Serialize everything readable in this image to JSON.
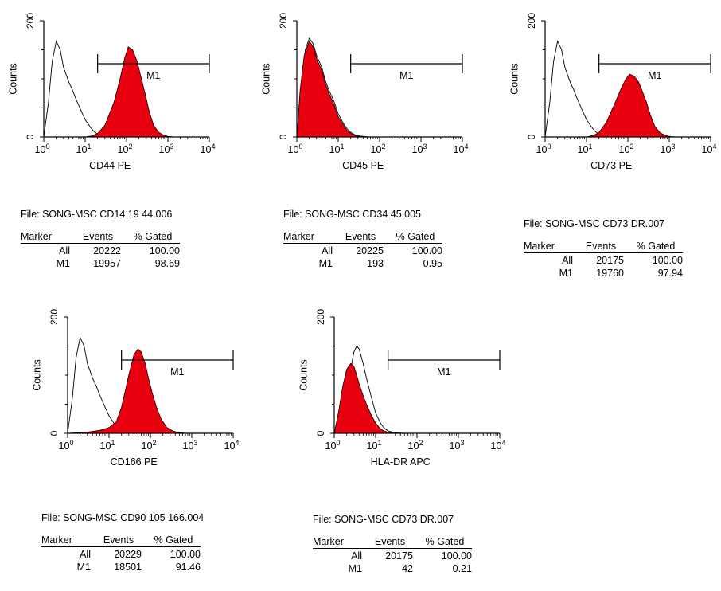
{
  "chart_data": [
    {
      "type": "area",
      "xlabel": "CD44 PE",
      "ylabel": "Counts",
      "xscale": "log",
      "xlim": [
        1,
        10000
      ],
      "ylim": [
        0,
        200
      ],
      "xticks": [
        "0",
        "1",
        "2",
        "3",
        "4"
      ],
      "yticks": [
        "0",
        "200"
      ],
      "gate": {
        "label": "M1",
        "from": 20,
        "to": 10000
      },
      "series": [
        {
          "role": "control",
          "fill": "none",
          "stroke": "#000000",
          "x": [
            1,
            1.3,
            1.6,
            2,
            2.5,
            3,
            4,
            5,
            6,
            8,
            10,
            13,
            16,
            20,
            25,
            30,
            40
          ],
          "y": [
            0,
            60,
            130,
            165,
            150,
            120,
            95,
            80,
            65,
            45,
            30,
            18,
            10,
            5,
            2,
            1,
            0
          ]
        },
        {
          "role": "stained",
          "fill": "#e8000e",
          "stroke": "#000000",
          "x": [
            1,
            5,
            10,
            15,
            20,
            30,
            50,
            70,
            90,
            110,
            140,
            180,
            220,
            280,
            350,
            450,
            600,
            800,
            1000,
            1500
          ],
          "y": [
            0,
            0,
            0,
            2,
            6,
            20,
            60,
            100,
            135,
            155,
            150,
            130,
            105,
            75,
            45,
            20,
            8,
            3,
            1,
            0
          ]
        }
      ]
    },
    {
      "type": "area",
      "xlabel": "CD45 PE",
      "ylabel": "Counts",
      "xscale": "log",
      "xlim": [
        1,
        10000
      ],
      "ylim": [
        0,
        200
      ],
      "xticks": [
        "0",
        "1",
        "2",
        "3",
        "4"
      ],
      "yticks": [
        "0",
        "200"
      ],
      "gate": {
        "label": "M1",
        "from": 20,
        "to": 10000
      },
      "series": [
        {
          "role": "control",
          "fill": "none",
          "stroke": "#000000",
          "x": [
            1,
            1.3,
            1.6,
            2,
            2.5,
            3,
            4,
            5,
            6,
            8,
            10,
            13,
            16,
            20,
            25,
            30,
            40,
            60
          ],
          "y": [
            0,
            90,
            150,
            170,
            160,
            140,
            120,
            95,
            80,
            60,
            40,
            25,
            15,
            8,
            4,
            2,
            1,
            0
          ]
        },
        {
          "role": "stained",
          "fill": "#e8000e",
          "stroke": "#000000",
          "x": [
            1,
            1.2,
            1.5,
            2,
            2.5,
            3,
            4,
            5,
            6,
            8,
            10,
            13,
            16,
            20,
            25,
            30,
            40,
            60
          ],
          "y": [
            0,
            80,
            140,
            165,
            155,
            135,
            115,
            90,
            75,
            55,
            35,
            22,
            12,
            6,
            3,
            1,
            0,
            0
          ]
        }
      ]
    },
    {
      "type": "area",
      "xlabel": "CD73 PE",
      "ylabel": "Counts",
      "xscale": "log",
      "xlim": [
        1,
        10000
      ],
      "ylim": [
        0,
        200
      ],
      "xticks": [
        "0",
        "1",
        "2",
        "3",
        "4"
      ],
      "yticks": [
        "0",
        "200"
      ],
      "gate": {
        "label": "M1",
        "from": 20,
        "to": 10000
      },
      "series": [
        {
          "role": "control",
          "fill": "none",
          "stroke": "#000000",
          "x": [
            1,
            1.3,
            1.6,
            2,
            2.5,
            3,
            4,
            5,
            6,
            8,
            10,
            13,
            16,
            20,
            25,
            30,
            40
          ],
          "y": [
            0,
            60,
            130,
            165,
            150,
            120,
            95,
            80,
            65,
            45,
            30,
            18,
            10,
            5,
            2,
            1,
            0
          ]
        },
        {
          "role": "stained",
          "fill": "#e8000e",
          "stroke": "#000000",
          "x": [
            1,
            5,
            10,
            15,
            20,
            30,
            50,
            70,
            90,
            110,
            140,
            180,
            220,
            280,
            350,
            450,
            600,
            800,
            1000,
            1500
          ],
          "y": [
            0,
            0,
            0,
            3,
            8,
            25,
            60,
            85,
            100,
            108,
            105,
            95,
            80,
            60,
            38,
            18,
            7,
            3,
            1,
            0
          ]
        }
      ]
    },
    {
      "type": "area",
      "xlabel": "CD166 PE",
      "ylabel": "Counts",
      "xscale": "log",
      "xlim": [
        1,
        10000
      ],
      "ylim": [
        0,
        200
      ],
      "xticks": [
        "0",
        "1",
        "2",
        "3",
        "4"
      ],
      "yticks": [
        "0",
        "200"
      ],
      "gate": {
        "label": "M1",
        "from": 20,
        "to": 10000
      },
      "series": [
        {
          "role": "control",
          "fill": "none",
          "stroke": "#000000",
          "x": [
            1,
            1.3,
            1.6,
            2,
            2.5,
            3,
            4,
            5,
            6,
            8,
            10,
            13,
            16,
            20,
            25,
            30,
            40
          ],
          "y": [
            0,
            60,
            130,
            165,
            150,
            120,
            95,
            80,
            65,
            45,
            30,
            18,
            10,
            5,
            2,
            1,
            0
          ]
        },
        {
          "role": "stained",
          "fill": "#e8000e",
          "stroke": "#000000",
          "x": [
            1,
            3,
            6,
            10,
            15,
            20,
            25,
            30,
            40,
            50,
            60,
            75,
            90,
            110,
            140,
            180,
            250,
            350,
            500,
            800
          ],
          "y": [
            0,
            2,
            5,
            10,
            20,
            45,
            75,
            100,
            135,
            145,
            140,
            120,
            95,
            70,
            45,
            25,
            10,
            4,
            1,
            0
          ]
        }
      ]
    },
    {
      "type": "area",
      "xlabel": "HLA-DR APC",
      "ylabel": "Counts",
      "xscale": "log",
      "xlim": [
        1,
        10000
      ],
      "ylim": [
        0,
        200
      ],
      "xticks": [
        "0",
        "1",
        "2",
        "3",
        "4"
      ],
      "yticks": [
        "0",
        "200"
      ],
      "gate": {
        "label": "M1",
        "from": 20,
        "to": 10000
      },
      "series": [
        {
          "role": "control",
          "fill": "none",
          "stroke": "#000000",
          "x": [
            1,
            1.3,
            1.6,
            2,
            2.5,
            3,
            3.5,
            4,
            5,
            6,
            8,
            10,
            13,
            16,
            20,
            30,
            50
          ],
          "y": [
            0,
            30,
            55,
            80,
            110,
            140,
            150,
            145,
            120,
            95,
            60,
            35,
            18,
            9,
            4,
            1,
            0
          ]
        },
        {
          "role": "stained",
          "fill": "#e8000e",
          "stroke": "#000000",
          "x": [
            1,
            1.3,
            1.6,
            2,
            2.5,
            3,
            3.5,
            4,
            5,
            6,
            8,
            10,
            13,
            16,
            20,
            30,
            50
          ],
          "y": [
            0,
            40,
            80,
            110,
            120,
            115,
            100,
            85,
            65,
            50,
            30,
            18,
            8,
            4,
            2,
            0,
            0
          ]
        }
      ]
    }
  ],
  "stats": [
    {
      "file": "File: SONG-MSC CD14 19 44.006",
      "headers": [
        "Marker",
        "Events",
        "% Gated"
      ],
      "rows": [
        [
          "All",
          "20222",
          "100.00"
        ],
        [
          "M1",
          "19957",
          "98.69"
        ]
      ]
    },
    {
      "file": "File: SONG-MSC CD34 45.005",
      "headers": [
        "Marker",
        "Events",
        "% Gated"
      ],
      "rows": [
        [
          "All",
          "20225",
          "100.00"
        ],
        [
          "M1",
          "193",
          "0.95"
        ]
      ]
    },
    {
      "file": "File: SONG-MSC CD73 DR.007",
      "headers": [
        "Marker",
        "Events",
        "% Gated"
      ],
      "rows": [
        [
          "All",
          "20175",
          "100.00"
        ],
        [
          "M1",
          "19760",
          "97.94"
        ]
      ]
    },
    {
      "file": "File: SONG-MSC CD90 105 166.004",
      "headers": [
        "Marker",
        "Events",
        "% Gated"
      ],
      "rows": [
        [
          "All",
          "20229",
          "100.00"
        ],
        [
          "M1",
          "18501",
          "91.46"
        ]
      ]
    },
    {
      "file": "File: SONG-MSC CD73 DR.007",
      "headers": [
        "Marker",
        "Events",
        "% Gated"
      ],
      "rows": [
        [
          "All",
          "20175",
          "100.00"
        ],
        [
          "M1",
          "42",
          "0.21"
        ]
      ]
    }
  ]
}
